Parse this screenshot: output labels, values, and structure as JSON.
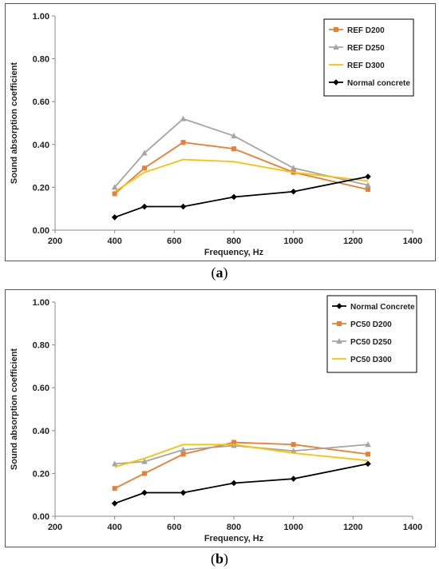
{
  "chart_data": [
    {
      "type": "line",
      "xlabel": "Frequency, Hz",
      "ylabel": "Sound absorption coefficient",
      "xlim": [
        200,
        1400
      ],
      "ylim": [
        0,
        1
      ],
      "xticks": [
        "200",
        "400",
        "600",
        "800",
        "1000",
        "1200",
        "1400"
      ],
      "yticks": [
        "0.00",
        "0.20",
        "0.40",
        "0.60",
        "0.80",
        "1.00"
      ],
      "grid": false,
      "legend_position": "top-right",
      "caption_letter": "a",
      "series": [
        {
          "name": "REF D200",
          "color": "#ED7D31",
          "marker": "square",
          "x": [
            400,
            500,
            630,
            800,
            1000,
            1250
          ],
          "values": [
            0.17,
            0.29,
            0.41,
            0.38,
            0.27,
            0.19
          ]
        },
        {
          "name": "REF D250",
          "color": "#A5A5A5",
          "marker": "triangle",
          "x": [
            400,
            500,
            630,
            800,
            1000,
            1250
          ],
          "values": [
            0.2,
            0.36,
            0.52,
            0.44,
            0.29,
            0.21
          ]
        },
        {
          "name": "REF D300",
          "color": "#FFC000",
          "marker": "none",
          "x": [
            400,
            500,
            630,
            800,
            1000,
            1250
          ],
          "values": [
            0.18,
            0.27,
            0.33,
            0.32,
            0.27,
            0.23
          ]
        },
        {
          "name": "Normal concrete",
          "color": "#000000",
          "marker": "diamond",
          "x": [
            400,
            500,
            630,
            800,
            1000,
            1250
          ],
          "values": [
            0.06,
            0.11,
            0.11,
            0.155,
            0.18,
            0.25
          ]
        }
      ]
    },
    {
      "type": "line",
      "xlabel": "Frequency, Hz",
      "ylabel": "Sound absorption coefficient",
      "xlim": [
        200,
        1400
      ],
      "ylim": [
        0,
        1
      ],
      "xticks": [
        "200",
        "400",
        "600",
        "800",
        "1000",
        "1200",
        "1400"
      ],
      "yticks": [
        "0.00",
        "0.20",
        "0.40",
        "0.60",
        "0.80",
        "1.00"
      ],
      "grid": false,
      "legend_position": "top-right",
      "caption_letter": "b",
      "series": [
        {
          "name": "Normal Concrete",
          "color": "#000000",
          "marker": "diamond",
          "x": [
            400,
            500,
            630,
            800,
            1000,
            1250
          ],
          "values": [
            0.06,
            0.11,
            0.11,
            0.155,
            0.175,
            0.245
          ]
        },
        {
          "name": "PC50 D200",
          "color": "#ED7D31",
          "marker": "square",
          "x": [
            400,
            500,
            630,
            800,
            1000,
            1250
          ],
          "values": [
            0.13,
            0.2,
            0.29,
            0.345,
            0.335,
            0.29
          ]
        },
        {
          "name": "PC50 D250",
          "color": "#A5A5A5",
          "marker": "triangle",
          "x": [
            400,
            500,
            630,
            800,
            1000,
            1250
          ],
          "values": [
            0.245,
            0.255,
            0.31,
            0.33,
            0.305,
            0.335
          ]
        },
        {
          "name": "PC50 D300",
          "color": "#FFC000",
          "marker": "none",
          "x": [
            400,
            500,
            630,
            800,
            1000,
            1250
          ],
          "values": [
            0.23,
            0.27,
            0.335,
            0.335,
            0.295,
            0.26
          ]
        }
      ]
    }
  ]
}
